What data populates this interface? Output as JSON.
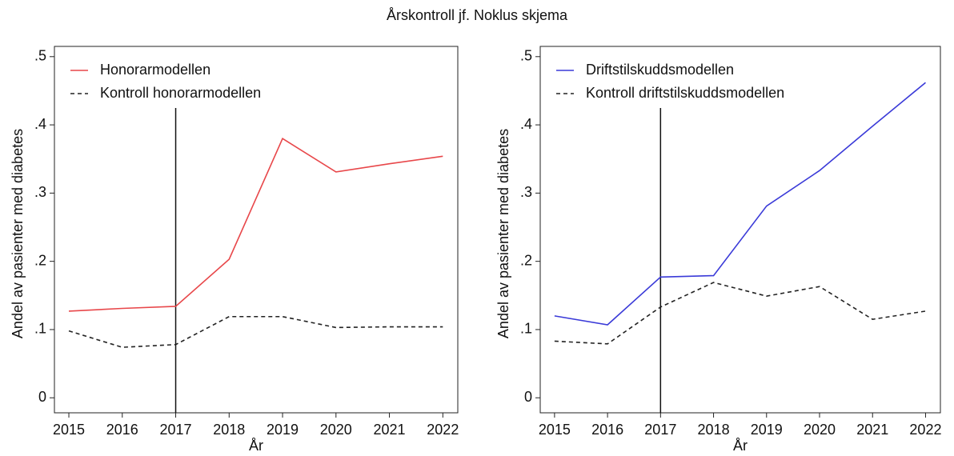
{
  "title": "Årskontroll jf. Noklus skjema",
  "chart_data": [
    {
      "type": "line",
      "ylabel": "Andel av pasienter med diabetes",
      "xlabel": "År",
      "x": [
        2015,
        2016,
        2017,
        2018,
        2019,
        2020,
        2021,
        2022
      ],
      "series": [
        {
          "name": "Honorarmodellen",
          "color": "#e8474a",
          "dash": false,
          "values": [
            0.127,
            0.131,
            0.134,
            0.203,
            0.38,
            0.331,
            0.343,
            0.354
          ]
        },
        {
          "name": "Kontroll honorarmodellen",
          "color": "#222222",
          "dash": true,
          "values": [
            0.098,
            0.074,
            0.078,
            0.119,
            0.119,
            0.103,
            0.104,
            0.104
          ]
        }
      ],
      "vline": 2017,
      "xlim": [
        2014.73,
        2022.28
      ],
      "xticks": [
        2015,
        2016,
        2017,
        2018,
        2019,
        2020,
        2021,
        2022
      ],
      "ylim": [
        -0.022,
        0.515
      ],
      "yticks": [
        0,
        {
          "value": 0.1,
          "label": ".1"
        },
        {
          "value": 0.2,
          "label": ".2"
        },
        {
          "value": 0.3,
          "label": ".3"
        },
        {
          "value": 0.4,
          "label": ".4"
        },
        {
          "value": 0.5,
          "label": ".5"
        }
      ],
      "legend": "top-left"
    },
    {
      "type": "line",
      "ylabel": "Andel av pasienter med diabetes",
      "xlabel": "År",
      "x": [
        2015,
        2016,
        2017,
        2018,
        2019,
        2020,
        2021,
        2022
      ],
      "series": [
        {
          "name": "Driftstilskuddsmodellen",
          "color": "#3a3ad8",
          "dash": false,
          "values": [
            0.12,
            0.107,
            0.177,
            0.179,
            0.281,
            0.333,
            0.398,
            0.462
          ]
        },
        {
          "name": "Kontroll driftstilskuddsmodellen",
          "color": "#222222",
          "dash": true,
          "values": [
            0.083,
            0.079,
            0.133,
            0.169,
            0.149,
            0.163,
            0.115,
            0.127
          ]
        }
      ],
      "vline": 2017,
      "xlim": [
        2014.73,
        2022.28
      ],
      "xticks": [
        2015,
        2016,
        2017,
        2018,
        2019,
        2020,
        2021,
        2022
      ],
      "ylim": [
        -0.022,
        0.515
      ],
      "yticks": [
        0,
        {
          "value": 0.1,
          "label": ".1"
        },
        {
          "value": 0.2,
          "label": ".2"
        },
        {
          "value": 0.3,
          "label": ".3"
        },
        {
          "value": 0.4,
          "label": ".4"
        },
        {
          "value": 0.5,
          "label": ".5"
        }
      ],
      "legend": "top-left"
    }
  ]
}
